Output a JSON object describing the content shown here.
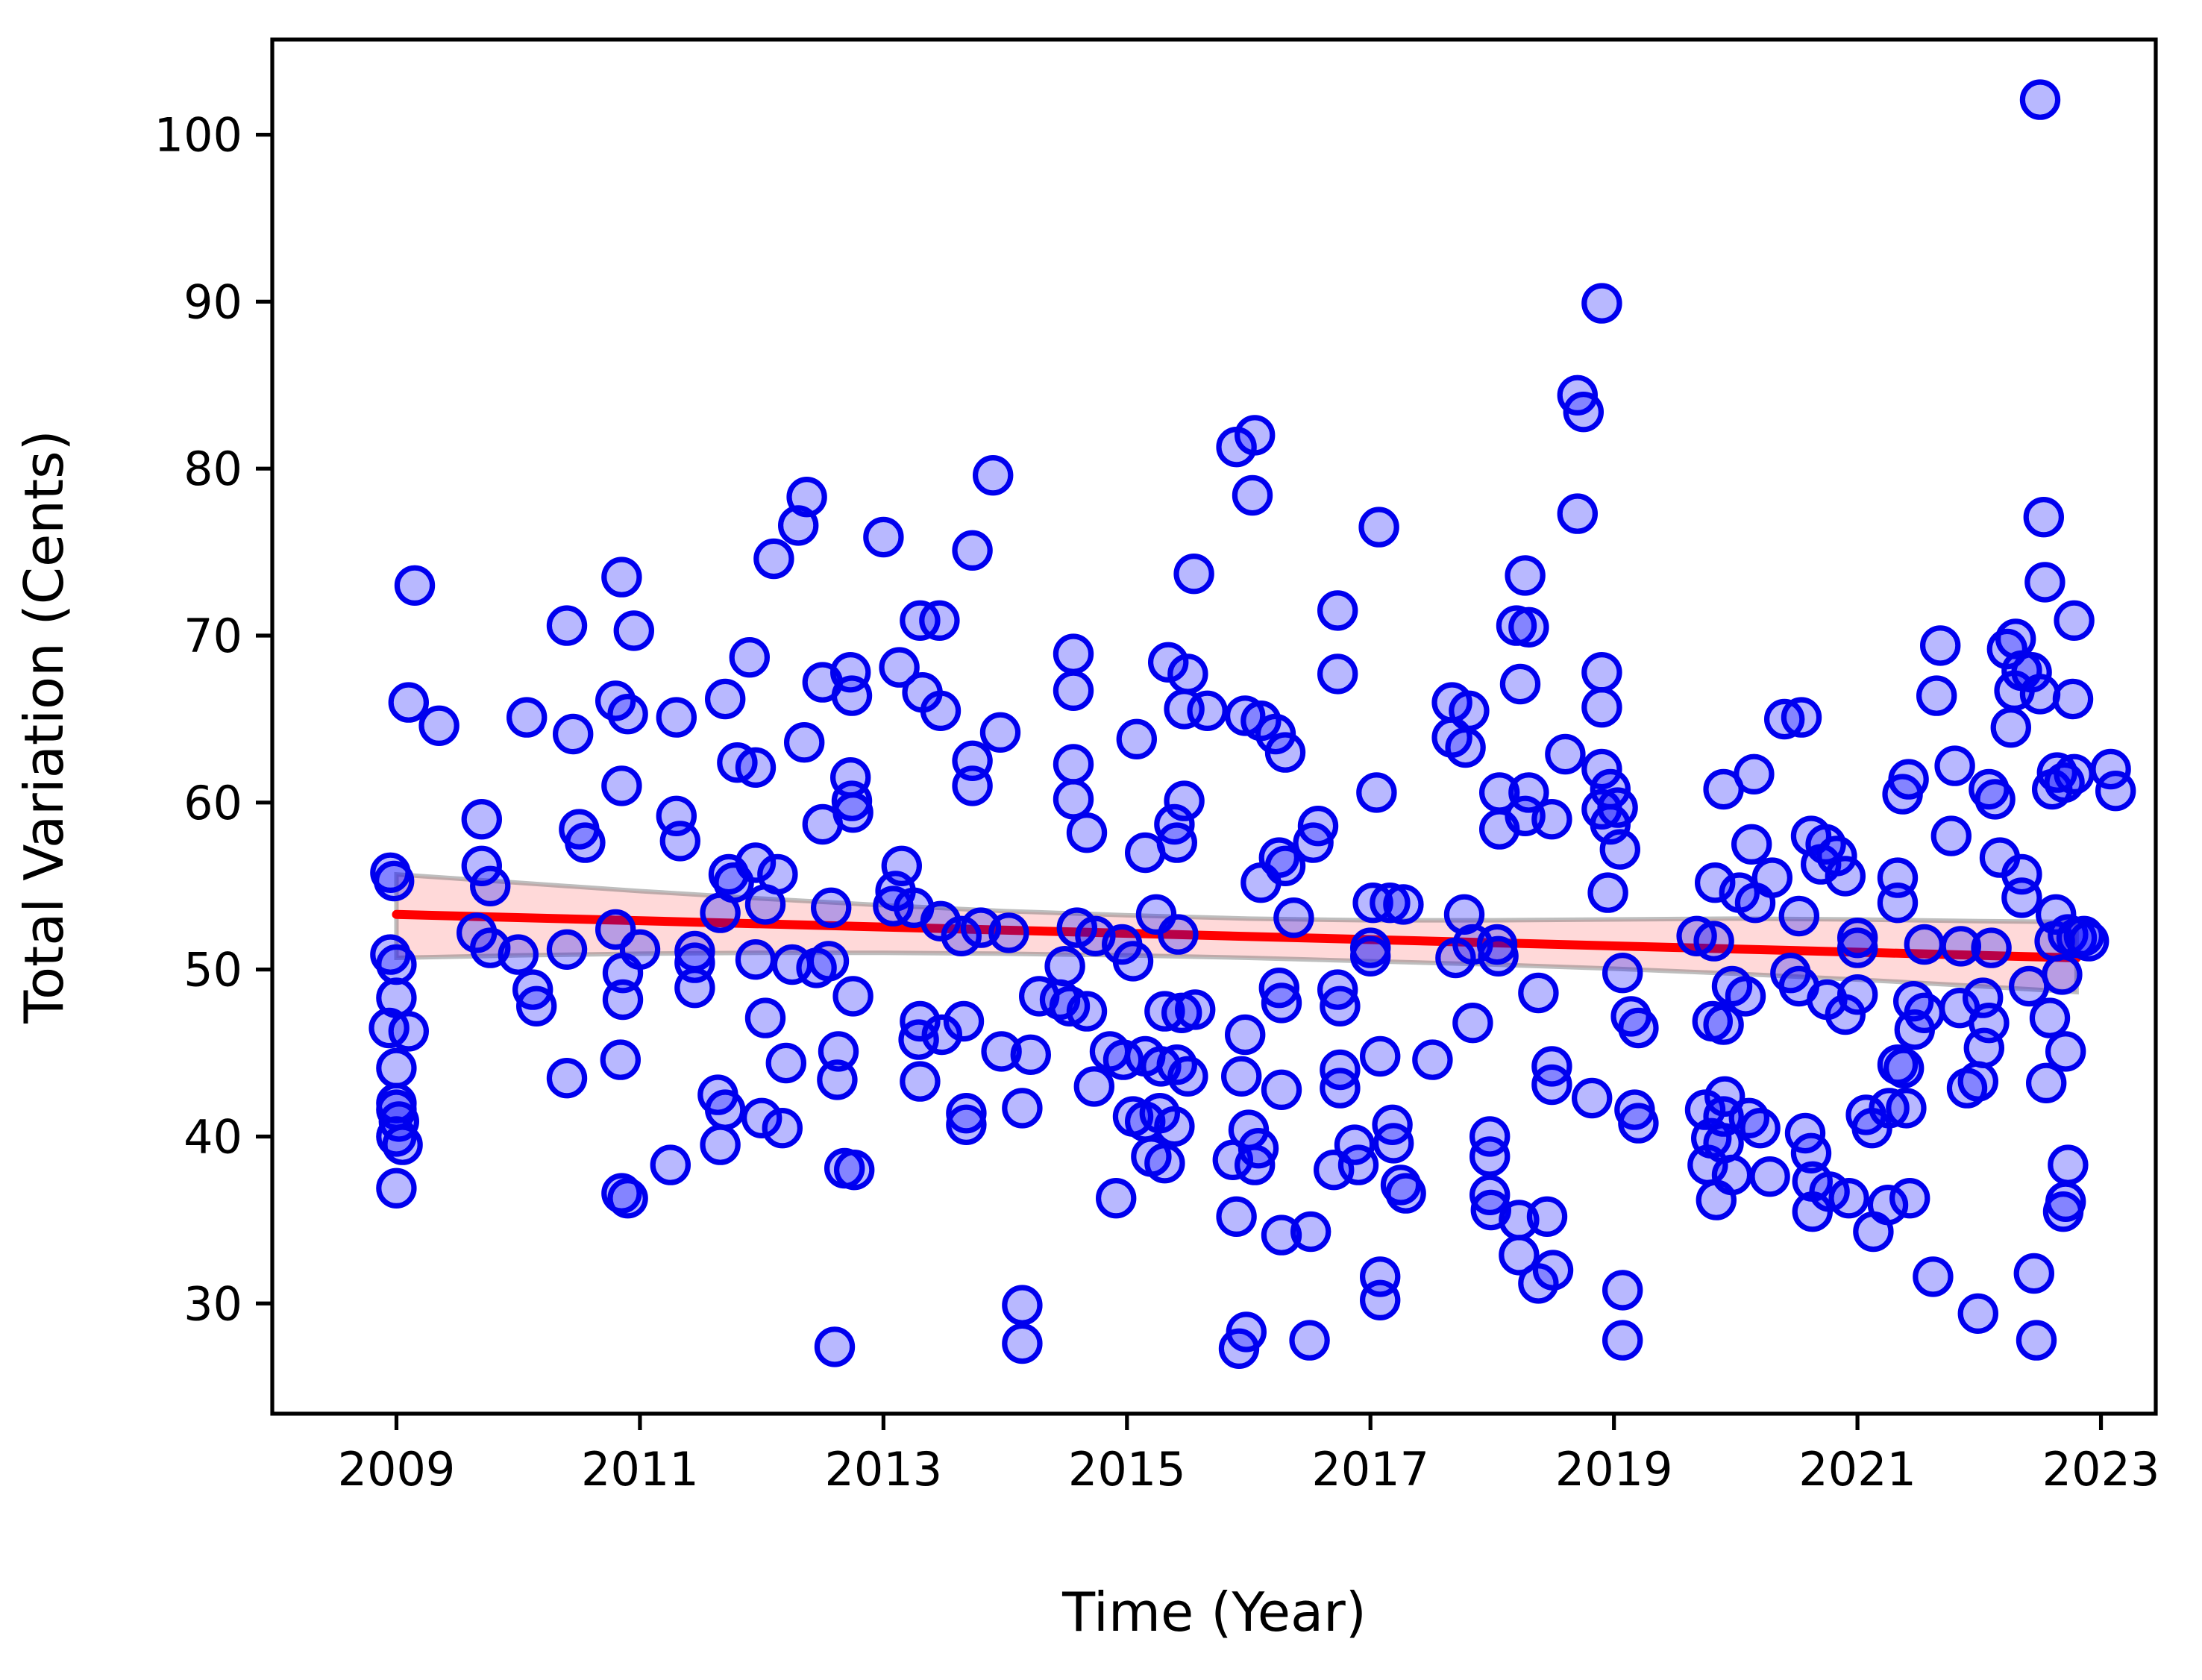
{
  "chart_data": {
    "type": "scatter",
    "title": "",
    "xlabel": "Time (Year)",
    "ylabel": "Total Variation (Cents)",
    "xlim": [
      2007.98,
      2023.45
    ],
    "ylim": [
      23.4,
      105.7
    ],
    "x_ticks": [
      2009,
      2011,
      2013,
      2015,
      2017,
      2019,
      2021,
      2023
    ],
    "y_ticks": [
      30,
      40,
      50,
      60,
      70,
      80,
      90,
      100
    ],
    "grid": false,
    "legend": "none",
    "colors": {
      "point_edge": "#0000ee",
      "point_fill": "rgba(0,0,255,0.28)",
      "trend_line": "#ff0000",
      "band_fill": "rgba(255,0,0,0.15)",
      "band_edge": "rgba(110,110,110,0.45)",
      "axis": "#000000"
    },
    "marker": {
      "radius": 11.8,
      "stroke_width": 3.6
    },
    "trend": {
      "x": [
        2009.0,
        2022.8
      ],
      "y": [
        53.3,
        50.7
      ],
      "width": 6
    },
    "band": {
      "x": [
        2009,
        2010,
        2011,
        2012,
        2013,
        2014,
        2015,
        2016,
        2017,
        2018,
        2019,
        2020,
        2021,
        2022,
        2022.8
      ],
      "top": [
        55.7,
        55.2,
        54.7,
        54.25,
        53.85,
        53.5,
        53.25,
        53.05,
        52.95,
        52.95,
        53.0,
        53.05,
        53.0,
        52.9,
        52.85
      ],
      "bottom": [
        50.7,
        50.85,
        50.95,
        51.0,
        51.0,
        50.95,
        50.85,
        50.7,
        50.5,
        50.3,
        50.05,
        49.75,
        49.4,
        49.0,
        48.65
      ]
    },
    "points": [
      [
        2008.94,
        46.5
      ],
      [
        2008.95,
        55.8
      ],
      [
        2008.95,
        50.9
      ],
      [
        2008.98,
        55.3
      ],
      [
        2009.0,
        50.3
      ],
      [
        2009.0,
        48.3
      ],
      [
        2009.0,
        44.1
      ],
      [
        2009.0,
        42.0
      ],
      [
        2009.0,
        41.6
      ],
      [
        2009.02,
        40.9
      ],
      [
        2009.0,
        40.0
      ],
      [
        2009.05,
        39.5
      ],
      [
        2009.0,
        36.9
      ],
      [
        2009.1,
        46.3
      ],
      [
        2009.1,
        66.0
      ],
      [
        2009.15,
        73.0
      ],
      [
        2009.35,
        64.6
      ],
      [
        2009.66,
        52.2
      ],
      [
        2009.7,
        59.0
      ],
      [
        2009.7,
        56.2
      ],
      [
        2009.77,
        55.0
      ],
      [
        2009.77,
        51.3
      ],
      [
        2010.0,
        50.9
      ],
      [
        2010.07,
        65.1
      ],
      [
        2010.12,
        48.8
      ],
      [
        2010.15,
        47.8
      ],
      [
        2010.4,
        70.6
      ],
      [
        2010.4,
        51.2
      ],
      [
        2010.4,
        43.5
      ],
      [
        2010.45,
        64.1
      ],
      [
        2010.5,
        58.4
      ],
      [
        2010.55,
        57.6
      ],
      [
        2010.8,
        66.1
      ],
      [
        2010.8,
        52.4
      ],
      [
        2010.84,
        44.6
      ],
      [
        2010.85,
        73.5
      ],
      [
        2010.85,
        61.0
      ],
      [
        2010.85,
        36.6
      ],
      [
        2010.86,
        49.8
      ],
      [
        2010.86,
        48.2
      ],
      [
        2010.9,
        65.3
      ],
      [
        2010.9,
        36.3
      ],
      [
        2010.95,
        70.3
      ],
      [
        2011.0,
        51.2
      ],
      [
        2011.25,
        38.3
      ],
      [
        2011.3,
        65.1
      ],
      [
        2011.3,
        59.2
      ],
      [
        2011.33,
        57.7
      ],
      [
        2011.45,
        51.1
      ],
      [
        2011.45,
        50.4
      ],
      [
        2011.45,
        48.9
      ],
      [
        2011.64,
        42.5
      ],
      [
        2011.66,
        39.5
      ],
      [
        2011.66,
        53.4
      ],
      [
        2011.7,
        41.6
      ],
      [
        2011.7,
        66.2
      ],
      [
        2011.73,
        55.7
      ],
      [
        2011.77,
        55.2
      ],
      [
        2011.8,
        62.4
      ],
      [
        2011.9,
        68.7
      ],
      [
        2011.95,
        62.1
      ],
      [
        2011.95,
        56.4
      ],
      [
        2011.95,
        50.6
      ],
      [
        2012.0,
        41.1
      ],
      [
        2012.03,
        53.9
      ],
      [
        2012.03,
        47.1
      ],
      [
        2012.1,
        74.6
      ],
      [
        2012.13,
        55.7
      ],
      [
        2012.17,
        40.5
      ],
      [
        2012.2,
        44.4
      ],
      [
        2012.25,
        50.3
      ],
      [
        2012.3,
        76.6
      ],
      [
        2012.35,
        63.6
      ],
      [
        2012.37,
        78.3
      ],
      [
        2012.45,
        50.1
      ],
      [
        2012.5,
        67.2
      ],
      [
        2012.5,
        58.7
      ],
      [
        2012.55,
        50.5
      ],
      [
        2012.57,
        53.7
      ],
      [
        2012.6,
        27.4
      ],
      [
        2012.62,
        43.4
      ],
      [
        2012.63,
        45.1
      ],
      [
        2012.68,
        38.1
      ],
      [
        2012.73,
        67.8
      ],
      [
        2012.73,
        61.5
      ],
      [
        2012.74,
        66.4
      ],
      [
        2012.74,
        60.1
      ],
      [
        2012.75,
        59.4
      ],
      [
        2012.75,
        48.4
      ],
      [
        2012.76,
        38.0
      ],
      [
        2013.0,
        75.9
      ],
      [
        2013.08,
        53.8
      ],
      [
        2013.1,
        54.7
      ],
      [
        2013.13,
        68.1
      ],
      [
        2013.15,
        56.2
      ],
      [
        2013.25,
        53.7
      ],
      [
        2013.29,
        45.8
      ],
      [
        2013.3,
        70.9
      ],
      [
        2013.3,
        46.9
      ],
      [
        2013.3,
        43.3
      ],
      [
        2013.32,
        66.6
      ],
      [
        2013.46,
        70.9
      ],
      [
        2013.47,
        65.5
      ],
      [
        2013.47,
        52.9
      ],
      [
        2013.48,
        46.1
      ],
      [
        2013.64,
        52.0
      ],
      [
        2013.66,
        46.9
      ],
      [
        2013.68,
        41.4
      ],
      [
        2013.68,
        40.7
      ],
      [
        2013.73,
        75.1
      ],
      [
        2013.73,
        62.5
      ],
      [
        2013.73,
        61.0
      ],
      [
        2013.8,
        52.5
      ],
      [
        2013.9,
        79.6
      ],
      [
        2013.96,
        64.2
      ],
      [
        2013.97,
        45.1
      ],
      [
        2014.03,
        52.2
      ],
      [
        2014.14,
        41.7
      ],
      [
        2014.14,
        29.9
      ],
      [
        2014.14,
        27.6
      ],
      [
        2014.21,
        44.9
      ],
      [
        2014.28,
        48.4
      ],
      [
        2014.45,
        48.2
      ],
      [
        2014.49,
        50.2
      ],
      [
        2014.53,
        47.8
      ],
      [
        2014.56,
        68.9
      ],
      [
        2014.56,
        66.7
      ],
      [
        2014.56,
        62.3
      ],
      [
        2014.56,
        60.2
      ],
      [
        2014.59,
        52.5
      ],
      [
        2014.67,
        58.2
      ],
      [
        2014.67,
        47.5
      ],
      [
        2014.73,
        43.0
      ],
      [
        2014.74,
        52.0
      ],
      [
        2014.86,
        45.1
      ],
      [
        2014.91,
        36.3
      ],
      [
        2014.96,
        51.5
      ],
      [
        2014.97,
        44.6
      ],
      [
        2015.05,
        50.5
      ],
      [
        2015.05,
        41.2
      ],
      [
        2015.08,
        63.8
      ],
      [
        2015.15,
        57.0
      ],
      [
        2015.15,
        44.8
      ],
      [
        2015.15,
        40.9
      ],
      [
        2015.2,
        38.8
      ],
      [
        2015.24,
        53.3
      ],
      [
        2015.27,
        41.4
      ],
      [
        2015.28,
        44.2
      ],
      [
        2015.31,
        47.5
      ],
      [
        2015.31,
        38.4
      ],
      [
        2015.34,
        68.4
      ],
      [
        2015.39,
        58.7
      ],
      [
        2015.39,
        40.6
      ],
      [
        2015.41,
        57.6
      ],
      [
        2015.41,
        44.3
      ],
      [
        2015.42,
        52.1
      ],
      [
        2015.45,
        47.4
      ],
      [
        2015.47,
        65.6
      ],
      [
        2015.47,
        60.1
      ],
      [
        2015.5,
        67.7
      ],
      [
        2015.5,
        43.6
      ],
      [
        2015.55,
        73.7
      ],
      [
        2015.56,
        47.6
      ],
      [
        2015.66,
        65.5
      ],
      [
        2015.87,
        38.6
      ],
      [
        2015.9,
        81.3
      ],
      [
        2015.9,
        35.2
      ],
      [
        2015.92,
        27.3
      ],
      [
        2015.94,
        43.6
      ],
      [
        2015.97,
        65.2
      ],
      [
        2015.97,
        46.1
      ],
      [
        2015.98,
        28.3
      ],
      [
        2016.0,
        40.4
      ],
      [
        2016.03,
        78.4
      ],
      [
        2016.05,
        82.0
      ],
      [
        2016.05,
        38.3
      ],
      [
        2016.08,
        39.3
      ],
      [
        2016.1,
        64.9
      ],
      [
        2016.1,
        55.2
      ],
      [
        2016.22,
        64.1
      ],
      [
        2016.25,
        56.7
      ],
      [
        2016.25,
        48.9
      ],
      [
        2016.27,
        48.0
      ],
      [
        2016.27,
        42.8
      ],
      [
        2016.27,
        34.1
      ],
      [
        2016.3,
        63.0
      ],
      [
        2016.3,
        56.2
      ],
      [
        2016.37,
        53.1
      ],
      [
        2016.5,
        27.8
      ],
      [
        2016.51,
        34.3
      ],
      [
        2016.53,
        57.6
      ],
      [
        2016.57,
        58.6
      ],
      [
        2016.7,
        38.0
      ],
      [
        2016.73,
        71.5
      ],
      [
        2016.73,
        67.7
      ],
      [
        2016.73,
        48.8
      ],
      [
        2016.75,
        47.8
      ],
      [
        2016.75,
        44.0
      ],
      [
        2016.75,
        42.9
      ],
      [
        2016.87,
        39.5
      ],
      [
        2016.9,
        38.3
      ],
      [
        2017.0,
        51.3
      ],
      [
        2017.0,
        50.8
      ],
      [
        2017.02,
        54.0
      ],
      [
        2017.05,
        60.6
      ],
      [
        2017.07,
        76.5
      ],
      [
        2017.08,
        44.8
      ],
      [
        2017.08,
        31.6
      ],
      [
        2017.08,
        30.2
      ],
      [
        2017.16,
        54.0
      ],
      [
        2017.18,
        40.7
      ],
      [
        2017.19,
        39.6
      ],
      [
        2017.25,
        37.1
      ],
      [
        2017.27,
        53.9
      ],
      [
        2017.29,
        36.6
      ],
      [
        2017.51,
        44.6
      ],
      [
        2017.67,
        66.0
      ],
      [
        2017.67,
        63.9
      ],
      [
        2017.7,
        50.7
      ],
      [
        2017.77,
        53.3
      ],
      [
        2017.78,
        63.3
      ],
      [
        2017.81,
        65.5
      ],
      [
        2017.84,
        51.5
      ],
      [
        2017.84,
        46.8
      ],
      [
        2017.98,
        40.0
      ],
      [
        2017.98,
        38.8
      ],
      [
        2017.98,
        36.5
      ],
      [
        2017.99,
        35.6
      ],
      [
        2018.04,
        51.5
      ],
      [
        2018.05,
        50.8
      ],
      [
        2018.06,
        60.6
      ],
      [
        2018.06,
        58.4
      ],
      [
        2018.2,
        70.6
      ],
      [
        2018.22,
        35.0
      ],
      [
        2018.22,
        32.9
      ],
      [
        2018.23,
        67.1
      ],
      [
        2018.27,
        73.6
      ],
      [
        2018.27,
        59.2
      ],
      [
        2018.3,
        70.5
      ],
      [
        2018.3,
        60.6
      ],
      [
        2018.38,
        48.6
      ],
      [
        2018.38,
        31.2
      ],
      [
        2018.45,
        35.2
      ],
      [
        2018.49,
        59.0
      ],
      [
        2018.49,
        44.2
      ],
      [
        2018.49,
        43.1
      ],
      [
        2018.5,
        32.0
      ],
      [
        2018.6,
        62.9
      ],
      [
        2018.7,
        84.4
      ],
      [
        2018.7,
        77.3
      ],
      [
        2018.75,
        83.4
      ],
      [
        2018.82,
        42.3
      ],
      [
        2018.9,
        89.9
      ],
      [
        2018.9,
        67.8
      ],
      [
        2018.9,
        65.7
      ],
      [
        2018.9,
        62.0
      ],
      [
        2018.9,
        59.6
      ],
      [
        2018.95,
        54.6
      ],
      [
        2018.97,
        60.8
      ],
      [
        2018.97,
        58.7
      ],
      [
        2019.03,
        59.7
      ],
      [
        2019.05,
        57.2
      ],
      [
        2019.07,
        49.8
      ],
      [
        2019.07,
        30.8
      ],
      [
        2019.07,
        27.8
      ],
      [
        2019.14,
        47.2
      ],
      [
        2019.17,
        41.6
      ],
      [
        2019.2,
        46.5
      ],
      [
        2019.2,
        40.8
      ],
      [
        2019.68,
        52.0
      ],
      [
        2019.75,
        41.6
      ],
      [
        2019.77,
        38.3
      ],
      [
        2019.8,
        39.9
      ],
      [
        2019.81,
        46.9
      ],
      [
        2019.82,
        51.7
      ],
      [
        2019.83,
        55.2
      ],
      [
        2019.84,
        36.2
      ],
      [
        2019.9,
        60.8
      ],
      [
        2019.9,
        46.7
      ],
      [
        2019.9,
        41.2
      ],
      [
        2019.9,
        39.6
      ],
      [
        2019.91,
        42.4
      ],
      [
        2019.97,
        49.0
      ],
      [
        2019.97,
        37.7
      ],
      [
        2020.03,
        54.6
      ],
      [
        2020.08,
        48.4
      ],
      [
        2020.11,
        41.1
      ],
      [
        2020.13,
        57.5
      ],
      [
        2020.15,
        61.7
      ],
      [
        2020.16,
        54.0
      ],
      [
        2020.2,
        40.5
      ],
      [
        2020.28,
        37.6
      ],
      [
        2020.3,
        55.5
      ],
      [
        2020.4,
        65.0
      ],
      [
        2020.45,
        49.8
      ],
      [
        2020.52,
        53.2
      ],
      [
        2020.52,
        49.0
      ],
      [
        2020.54,
        65.1
      ],
      [
        2020.57,
        40.2
      ],
      [
        2020.62,
        58.0
      ],
      [
        2020.62,
        39.0
      ],
      [
        2020.63,
        37.3
      ],
      [
        2020.63,
        35.5
      ],
      [
        2020.7,
        56.3
      ],
      [
        2020.74,
        57.5
      ],
      [
        2020.75,
        48.2
      ],
      [
        2020.77,
        36.7
      ],
      [
        2020.83,
        56.8
      ],
      [
        2020.9,
        55.6
      ],
      [
        2020.9,
        47.3
      ],
      [
        2020.93,
        36.3
      ],
      [
        2021.0,
        51.9
      ],
      [
        2021.0,
        51.3
      ],
      [
        2021.0,
        48.5
      ],
      [
        2021.07,
        41.3
      ],
      [
        2021.12,
        40.5
      ],
      [
        2021.13,
        34.3
      ],
      [
        2021.25,
        35.9
      ],
      [
        2021.26,
        41.7
      ],
      [
        2021.33,
        55.5
      ],
      [
        2021.33,
        54.0
      ],
      [
        2021.33,
        44.3
      ],
      [
        2021.37,
        60.5
      ],
      [
        2021.38,
        44.1
      ],
      [
        2021.4,
        41.7
      ],
      [
        2021.42,
        61.4
      ],
      [
        2021.43,
        36.3
      ],
      [
        2021.46,
        48.1
      ],
      [
        2021.47,
        46.4
      ],
      [
        2021.55,
        51.5
      ],
      [
        2021.55,
        47.4
      ],
      [
        2021.62,
        31.6
      ],
      [
        2021.65,
        66.4
      ],
      [
        2021.68,
        69.4
      ],
      [
        2021.77,
        58.0
      ],
      [
        2021.8,
        62.2
      ],
      [
        2021.84,
        47.7
      ],
      [
        2021.85,
        51.4
      ],
      [
        2021.9,
        42.9
      ],
      [
        2021.99,
        43.3
      ],
      [
        2021.99,
        29.4
      ],
      [
        2022.03,
        48.3
      ],
      [
        2022.04,
        45.3
      ],
      [
        2022.08,
        60.8
      ],
      [
        2022.08,
        46.8
      ],
      [
        2022.1,
        51.3
      ],
      [
        2022.13,
        60.2
      ],
      [
        2022.17,
        56.7
      ],
      [
        2022.23,
        69.2
      ],
      [
        2022.26,
        64.5
      ],
      [
        2022.29,
        66.7
      ],
      [
        2022.3,
        69.8
      ],
      [
        2022.35,
        67.9
      ],
      [
        2022.35,
        55.7
      ],
      [
        2022.35,
        54.3
      ],
      [
        2022.41,
        49.0
      ],
      [
        2022.43,
        67.8
      ],
      [
        2022.45,
        31.8
      ],
      [
        2022.47,
        27.8
      ],
      [
        2022.5,
        102.1
      ],
      [
        2022.5,
        66.5
      ],
      [
        2022.53,
        77.1
      ],
      [
        2022.54,
        73.2
      ],
      [
        2022.55,
        43.2
      ],
      [
        2022.58,
        47.1
      ],
      [
        2022.6,
        60.8
      ],
      [
        2022.62,
        51.7
      ],
      [
        2022.63,
        53.3
      ],
      [
        2022.64,
        61.8
      ],
      [
        2022.68,
        49.7
      ],
      [
        2022.69,
        35.5
      ],
      [
        2022.7,
        61.2
      ],
      [
        2022.71,
        45.1
      ],
      [
        2022.71,
        36.1
      ],
      [
        2022.73,
        52.1
      ],
      [
        2022.73,
        38.3
      ],
      [
        2022.77,
        66.2
      ],
      [
        2022.78,
        70.9
      ],
      [
        2022.78,
        61.7
      ],
      [
        2022.8,
        51.9
      ],
      [
        2022.86,
        52.0
      ],
      [
        2022.9,
        51.7
      ],
      [
        2023.08,
        62.0
      ],
      [
        2023.12,
        60.7
      ]
    ]
  }
}
